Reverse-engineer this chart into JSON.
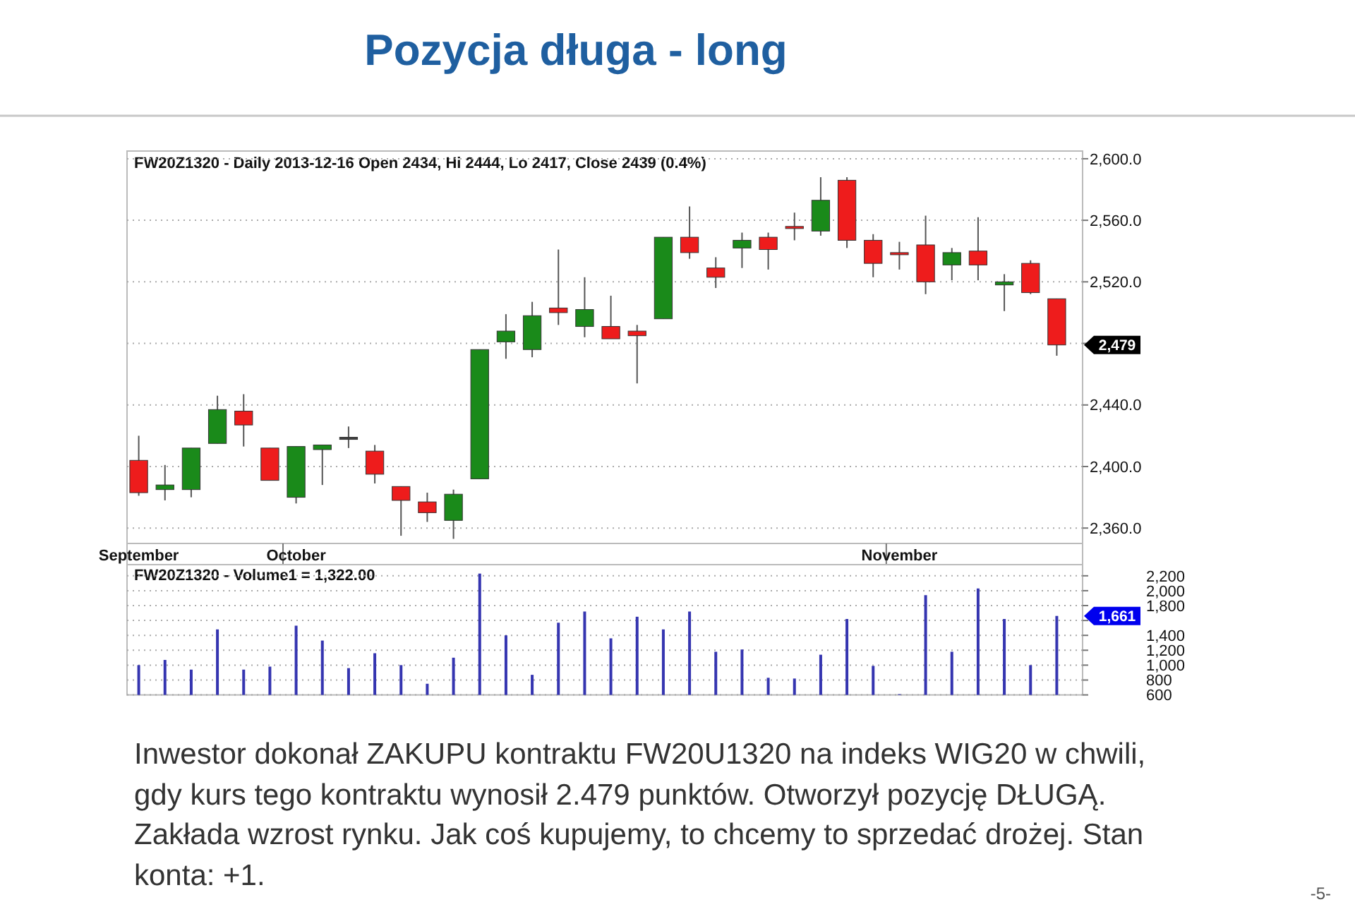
{
  "chart_data": [
    {
      "type": "candlestick",
      "title": "Pozycja długa - long",
      "subtitle": "FW20Z1320 - Daily 2013-12-16 Open 2434, Hi 2444, Lo 2417, Close 2439 (0.4%)",
      "categories": [
        "September",
        null,
        null,
        null,
        null,
        null,
        "October",
        null,
        null,
        null,
        null,
        null,
        null,
        null,
        null,
        null,
        null,
        null,
        null,
        null,
        null,
        null,
        null,
        null,
        null,
        null,
        null,
        null,
        null,
        "November",
        null,
        null,
        null,
        null,
        null,
        null
      ],
      "ohlc": [
        [
          2404,
          2420,
          2381,
          2383
        ],
        [
          2385,
          2401,
          2378,
          2388
        ],
        [
          2385,
          2412,
          2380,
          2412
        ],
        [
          2415,
          2446,
          2415,
          2437
        ],
        [
          2436,
          2447,
          2413,
          2427
        ],
        [
          2412,
          2412,
          2391,
          2391
        ],
        [
          2380,
          2413,
          2376,
          2413
        ],
        [
          2411,
          2414,
          2388,
          2414
        ],
        [
          2419,
          2426,
          2412,
          2419
        ],
        [
          2410,
          2414,
          2389,
          2395
        ],
        [
          2387,
          2387,
          2355,
          2378
        ],
        [
          2377,
          2383,
          2364,
          2370
        ],
        [
          2365,
          2385,
          2353,
          2382
        ],
        [
          2392,
          2476,
          2392,
          2476
        ],
        [
          2481,
          2499,
          2470,
          2488
        ],
        [
          2476,
          2507,
          2471,
          2498
        ],
        [
          2503,
          2541,
          2492,
          2500
        ],
        [
          2491,
          2523,
          2484,
          2502
        ],
        [
          2491,
          2511,
          2483,
          2483
        ],
        [
          2488,
          2492,
          2454,
          2485
        ],
        [
          2496,
          2549,
          2496,
          2549
        ],
        [
          2549,
          2569,
          2535,
          2539
        ],
        [
          2529,
          2536,
          2516,
          2523
        ],
        [
          2542,
          2552,
          2529,
          2547
        ],
        [
          2549,
          2552,
          2528,
          2541
        ],
        [
          2556,
          2565,
          2547,
          2555
        ],
        [
          2553,
          2588,
          2550,
          2573
        ],
        [
          2586,
          2588,
          2542,
          2547
        ],
        [
          2547,
          2551,
          2523,
          2532
        ],
        [
          2539,
          2546,
          2528,
          2538
        ],
        [
          2544,
          2563,
          2512,
          2520
        ],
        [
          2531,
          2542,
          2521,
          2539
        ],
        [
          2540,
          2562,
          2521,
          2531
        ],
        [
          2518,
          2525,
          2501,
          2520
        ],
        [
          2532,
          2534,
          2512,
          2513
        ],
        [
          2509,
          2509,
          2472,
          2479
        ]
      ],
      "colors": [
        "#ee1c1c",
        "#1a8a1a",
        "#1a8a1a",
        "#1a8a1a",
        "#ee1c1c",
        "#ee1c1c",
        "#1a8a1a",
        "#1a8a1a",
        "#404040",
        "#ee1c1c",
        "#ee1c1c",
        "#ee1c1c",
        "#1a8a1a",
        "#1a8a1a",
        "#1a8a1a",
        "#1a8a1a",
        "#ee1c1c",
        "#1a8a1a",
        "#ee1c1c",
        "#ee1c1c",
        "#1a8a1a",
        "#ee1c1c",
        "#ee1c1c",
        "#1a8a1a",
        "#ee1c1c",
        "#ee1c1c",
        "#1a8a1a",
        "#ee1c1c",
        "#ee1c1c",
        "#ee1c1c",
        "#ee1c1c",
        "#1a8a1a",
        "#ee1c1c",
        "#1a8a1a",
        "#ee1c1c",
        "#ee1c1c"
      ],
      "ylim": [
        2350,
        2605
      ],
      "yticks": [
        {
          "value": 2360,
          "label": "2,360.0"
        },
        {
          "value": 2400,
          "label": "2,400.0"
        },
        {
          "value": 2440,
          "label": "2,440.0"
        },
        {
          "value": 2480,
          "label": null
        },
        {
          "value": 2520,
          "label": "2,520.0"
        },
        {
          "value": 2560,
          "label": "2,560.0"
        },
        {
          "value": 2600,
          "label": "2,600.0"
        }
      ],
      "grid": "y",
      "annotations": [
        "Inwestor dokonał ZAKUPU kontraktu FW20U1320 na indeks WIG20 w chwili, gdy kurs tego kontraktu wynosił 2.479 punktów. Otworzył pozycję DŁUGĄ. Zakłada wzrost rynku. Jak coś kupujemy, to chcemy to sprzedać drożej. Stan konta: +1.",
        "-5-",
        "2,479"
      ]
    },
    {
      "type": "bar",
      "title": "FW20Z1320 - Volume1 = 1,322.00",
      "categories": [
        null,
        null,
        null,
        null,
        null,
        null,
        null,
        null,
        null,
        null,
        null,
        null,
        null,
        null,
        null,
        null,
        null,
        null,
        null,
        null,
        null,
        null,
        null,
        null,
        null,
        null,
        null,
        null,
        null,
        null,
        null,
        null,
        null,
        null,
        null,
        null
      ],
      "values": [
        1000,
        1070,
        940,
        1480,
        940,
        980,
        1530,
        1330,
        960,
        1160,
        1000,
        750,
        1100,
        2230,
        1400,
        870,
        1570,
        1720,
        1360,
        1650,
        1480,
        1720,
        1180,
        1210,
        830,
        820,
        1140,
        1620,
        990,
        610,
        1940,
        1180,
        2030,
        1620,
        1000,
        1661
      ],
      "color": "#3535b0",
      "ylim": [
        600,
        2350
      ],
      "yticks": [
        {
          "value": 600,
          "label": "600"
        },
        {
          "value": 800,
          "label": "800"
        },
        {
          "value": 1000,
          "label": "1,000"
        },
        {
          "value": 1200,
          "label": "1,200"
        },
        {
          "value": 1400,
          "label": "1,400"
        },
        {
          "value": 1600,
          "label": null
        },
        {
          "value": 1800,
          "label": "1,800"
        },
        {
          "value": 2000,
          "label": "2,000"
        },
        {
          "value": 2200,
          "label": "2,200"
        }
      ],
      "grid": "y",
      "tick_labels": "y",
      "annotations": [
        "1,661"
      ]
    }
  ]
}
